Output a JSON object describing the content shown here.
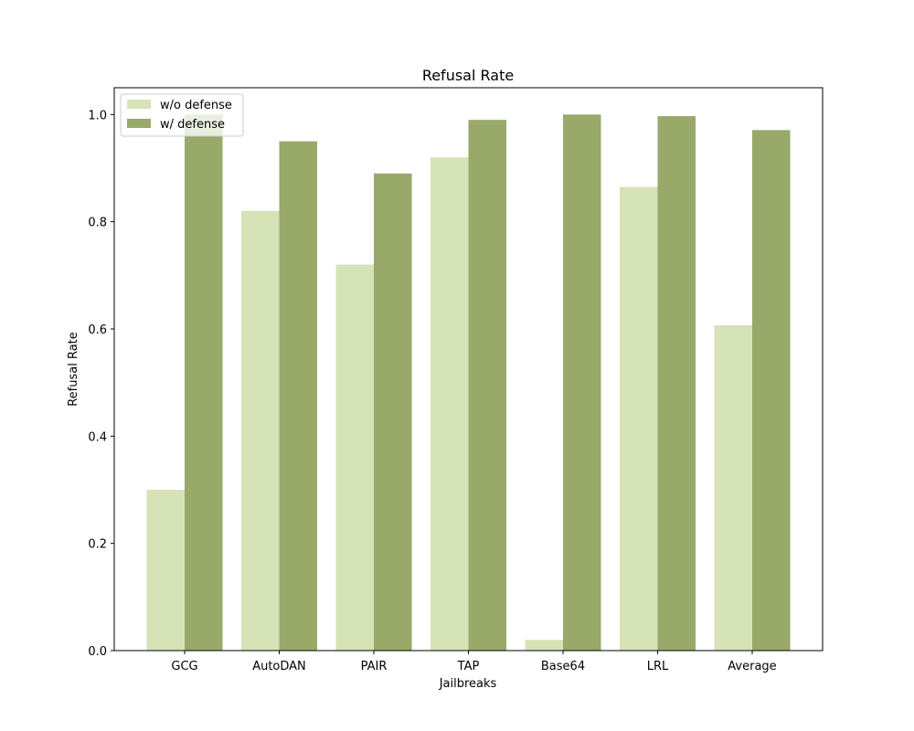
{
  "chart_data": {
    "type": "bar",
    "title": "Refusal Rate",
    "xlabel": "Jailbreaks",
    "ylabel": "Refusal Rate",
    "categories": [
      "GCG",
      "AutoDAN",
      "PAIR",
      "TAP",
      "Base64",
      "LRL",
      "Average"
    ],
    "series": [
      {
        "name": "w/o defense",
        "color": "#d6e3b7",
        "values": [
          0.3,
          0.82,
          0.72,
          0.92,
          0.02,
          0.865,
          0.607
        ]
      },
      {
        "name": "w/ defense",
        "color": "#98a96a",
        "values": [
          1.0,
          0.95,
          0.89,
          0.99,
          1.0,
          0.997,
          0.971
        ]
      }
    ],
    "ylim": [
      0,
      1.05
    ],
    "yticks": [
      "0.0",
      "0.2",
      "0.4",
      "0.6",
      "0.8",
      "1.0"
    ],
    "grid": false,
    "legend_position": "top-left"
  }
}
